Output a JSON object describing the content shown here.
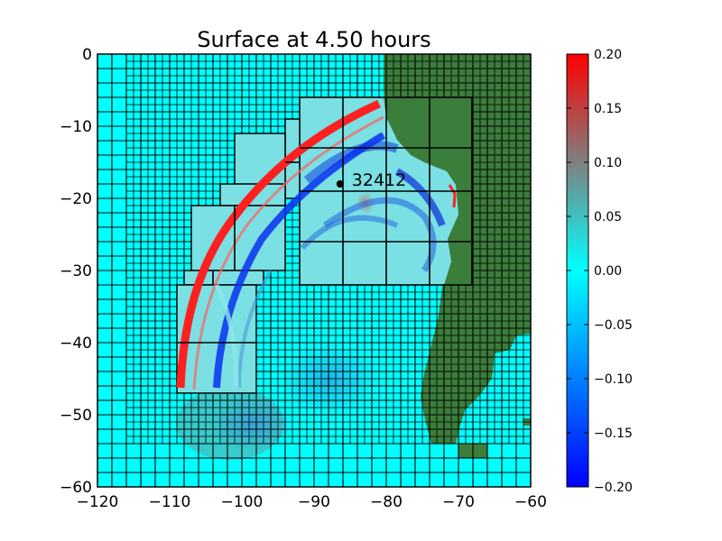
{
  "chart_data": {
    "type": "heatmap",
    "title": "Surface at 4.50 hours",
    "xlabel": "",
    "ylabel": "",
    "xlim": [
      -120,
      -60
    ],
    "ylim": [
      -60,
      0
    ],
    "x_ticks": [
      "−120",
      "−110",
      "−100",
      "−90",
      "−80",
      "−70",
      "−60"
    ],
    "x_tick_values": [
      -120,
      -110,
      -100,
      -90,
      -80,
      -70,
      -60
    ],
    "y_ticks": [
      "0",
      "−10",
      "−20",
      "−30",
      "−40",
      "−50",
      "−60"
    ],
    "y_tick_values": [
      0,
      -10,
      -20,
      -30,
      -40,
      -50,
      -60
    ],
    "colorbar": {
      "min": -0.2,
      "max": 0.2,
      "ticks": [
        "0.20",
        "0.15",
        "0.10",
        "0.05",
        "0.00",
        "−0.05",
        "−0.10",
        "−0.15",
        "−0.20"
      ],
      "tick_values": [
        0.2,
        0.15,
        0.1,
        0.05,
        0.0,
        -0.05,
        -0.1,
        -0.15,
        -0.2
      ],
      "colors": [
        "#0000ff",
        "#00ffff",
        "#ff0000"
      ]
    },
    "station": {
      "label": "32412",
      "x": -86.4,
      "y": -18.0
    },
    "grid_level1_spacing_deg": 2,
    "grid_level2_spacing_deg": 1,
    "refined_patches": [
      {
        "x": [
          -93,
          -77.5
        ],
        "y": [
          -32,
          -6
        ],
        "cell_deg": 6
      },
      {
        "x": [
          -77.5,
          -71
        ],
        "y": [
          -32,
          -6
        ],
        "cell_deg": 6
      },
      {
        "x": [
          -103,
          -94
        ],
        "y": [
          -31,
          -21
        ],
        "cell_deg": 5
      },
      {
        "x": [
          -109.5,
          -101
        ],
        "y": [
          -47,
          -32
        ],
        "cell_deg": 5
      },
      {
        "x": [
          -98.5,
          -93
        ],
        "y": [
          -23,
          -11
        ],
        "cell_deg": 5
      },
      {
        "x": [
          -95,
          -93
        ],
        "y": [
          -20,
          -9.5
        ],
        "cell_deg": 5
      }
    ],
    "wave_front_peak": 0.2,
    "land_color": "#3b7d3b"
  }
}
